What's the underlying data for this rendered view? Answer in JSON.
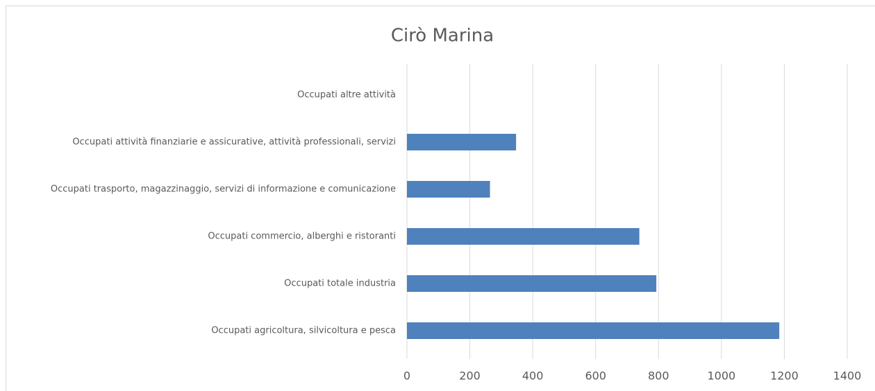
{
  "chart_data": {
    "type": "bar",
    "orientation": "horizontal",
    "title": "Cirò Marina",
    "categories": [
      "Occupati agricoltura, silvicoltura e pesca",
      "Occupati totale industria",
      "Occupati commercio, alberghi e ristoranti",
      "Occupati trasporto, magazzinaggio, servizi di informazione e comunicazione",
      "Occupati attività finanziarie e assicurative, attività professionali, servizi",
      "Occupati altre attività"
    ],
    "values": [
      1184,
      793,
      739,
      264,
      347,
      0
    ],
    "color": "#4f81bd",
    "xlim": [
      0,
      1400
    ],
    "xticks": [
      0,
      200,
      400,
      600,
      800,
      1000,
      1200,
      1400
    ],
    "grid": true
  }
}
